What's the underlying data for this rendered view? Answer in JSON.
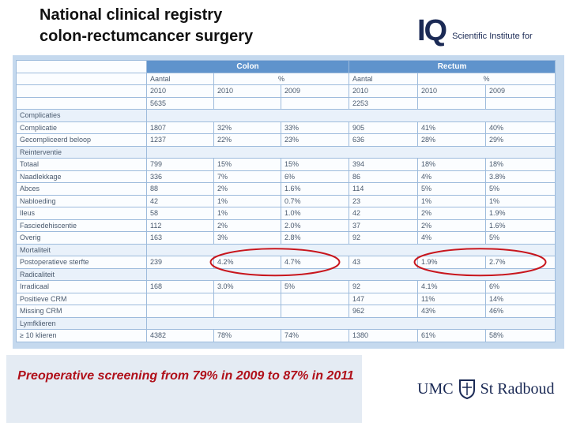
{
  "header": {
    "title": [
      "National clinical registry",
      "colon-rectumcancer surgery"
    ]
  },
  "logo": {
    "mark": "IQ",
    "text": "Scientific Institute for"
  },
  "table": {
    "groups": [
      "Colon",
      "Rectum"
    ],
    "measures": [
      "Aantal",
      "%",
      "Aantal",
      "%"
    ],
    "years": [
      "2010",
      "2010",
      "2009",
      "2010",
      "2010",
      "2009"
    ],
    "totals": [
      "5635",
      "2253"
    ],
    "rows": [
      [
        "Complicaties"
      ],
      [
        "Complicatie",
        "1807",
        "32%",
        "33%",
        "905",
        "41%",
        "40%"
      ],
      [
        "Gecompliceerd beloop",
        "1237",
        "22%",
        "23%",
        "636",
        "28%",
        "29%"
      ],
      [
        "Reinterventie"
      ],
      [
        "Totaal",
        "799",
        "15%",
        "15%",
        "394",
        "18%",
        "18%"
      ],
      [
        "Naadlekkage",
        "336",
        "7%",
        "6%",
        "86",
        "4%",
        "3.8%"
      ],
      [
        "Abces",
        "88",
        "2%",
        "1.6%",
        "114",
        "5%",
        "5%"
      ],
      [
        "Nabloeding",
        "42",
        "1%",
        "0.7%",
        "23",
        "1%",
        "1%"
      ],
      [
        "Ileus",
        "58",
        "1%",
        "1.0%",
        "42",
        "2%",
        "1.9%"
      ],
      [
        "Fasciedehiscentie",
        "112",
        "2%",
        "2.0%",
        "37",
        "2%",
        "1.6%"
      ],
      [
        "Overig",
        "163",
        "3%",
        "2.8%",
        "92",
        "4%",
        "5%"
      ],
      [
        "Mortaliteit"
      ],
      [
        "Postoperatieve sterfte",
        "239",
        "4.2%",
        "4.7%",
        "43",
        "1.9%",
        "2.7%"
      ],
      [
        "Radicaliteit"
      ],
      [
        "Irradicaal",
        "168",
        "3.0%",
        "5%",
        "92",
        "4.1%",
        "6%"
      ],
      [
        "Positieve CRM",
        null,
        null,
        null,
        "147",
        "11%",
        "14%"
      ],
      [
        "Missing CRM",
        null,
        null,
        null,
        "962",
        "43%",
        "46%"
      ],
      [
        "Lymfklieren"
      ],
      [
        "≥ 10 klieren",
        "4382",
        "78%",
        "74%",
        "1380",
        "61%",
        "58%"
      ]
    ]
  },
  "caption": "Preoperative screening from 79% in 2009 to 87% in 2011",
  "footer_logo": {
    "left": "UMC",
    "right": "St Radboud"
  }
}
